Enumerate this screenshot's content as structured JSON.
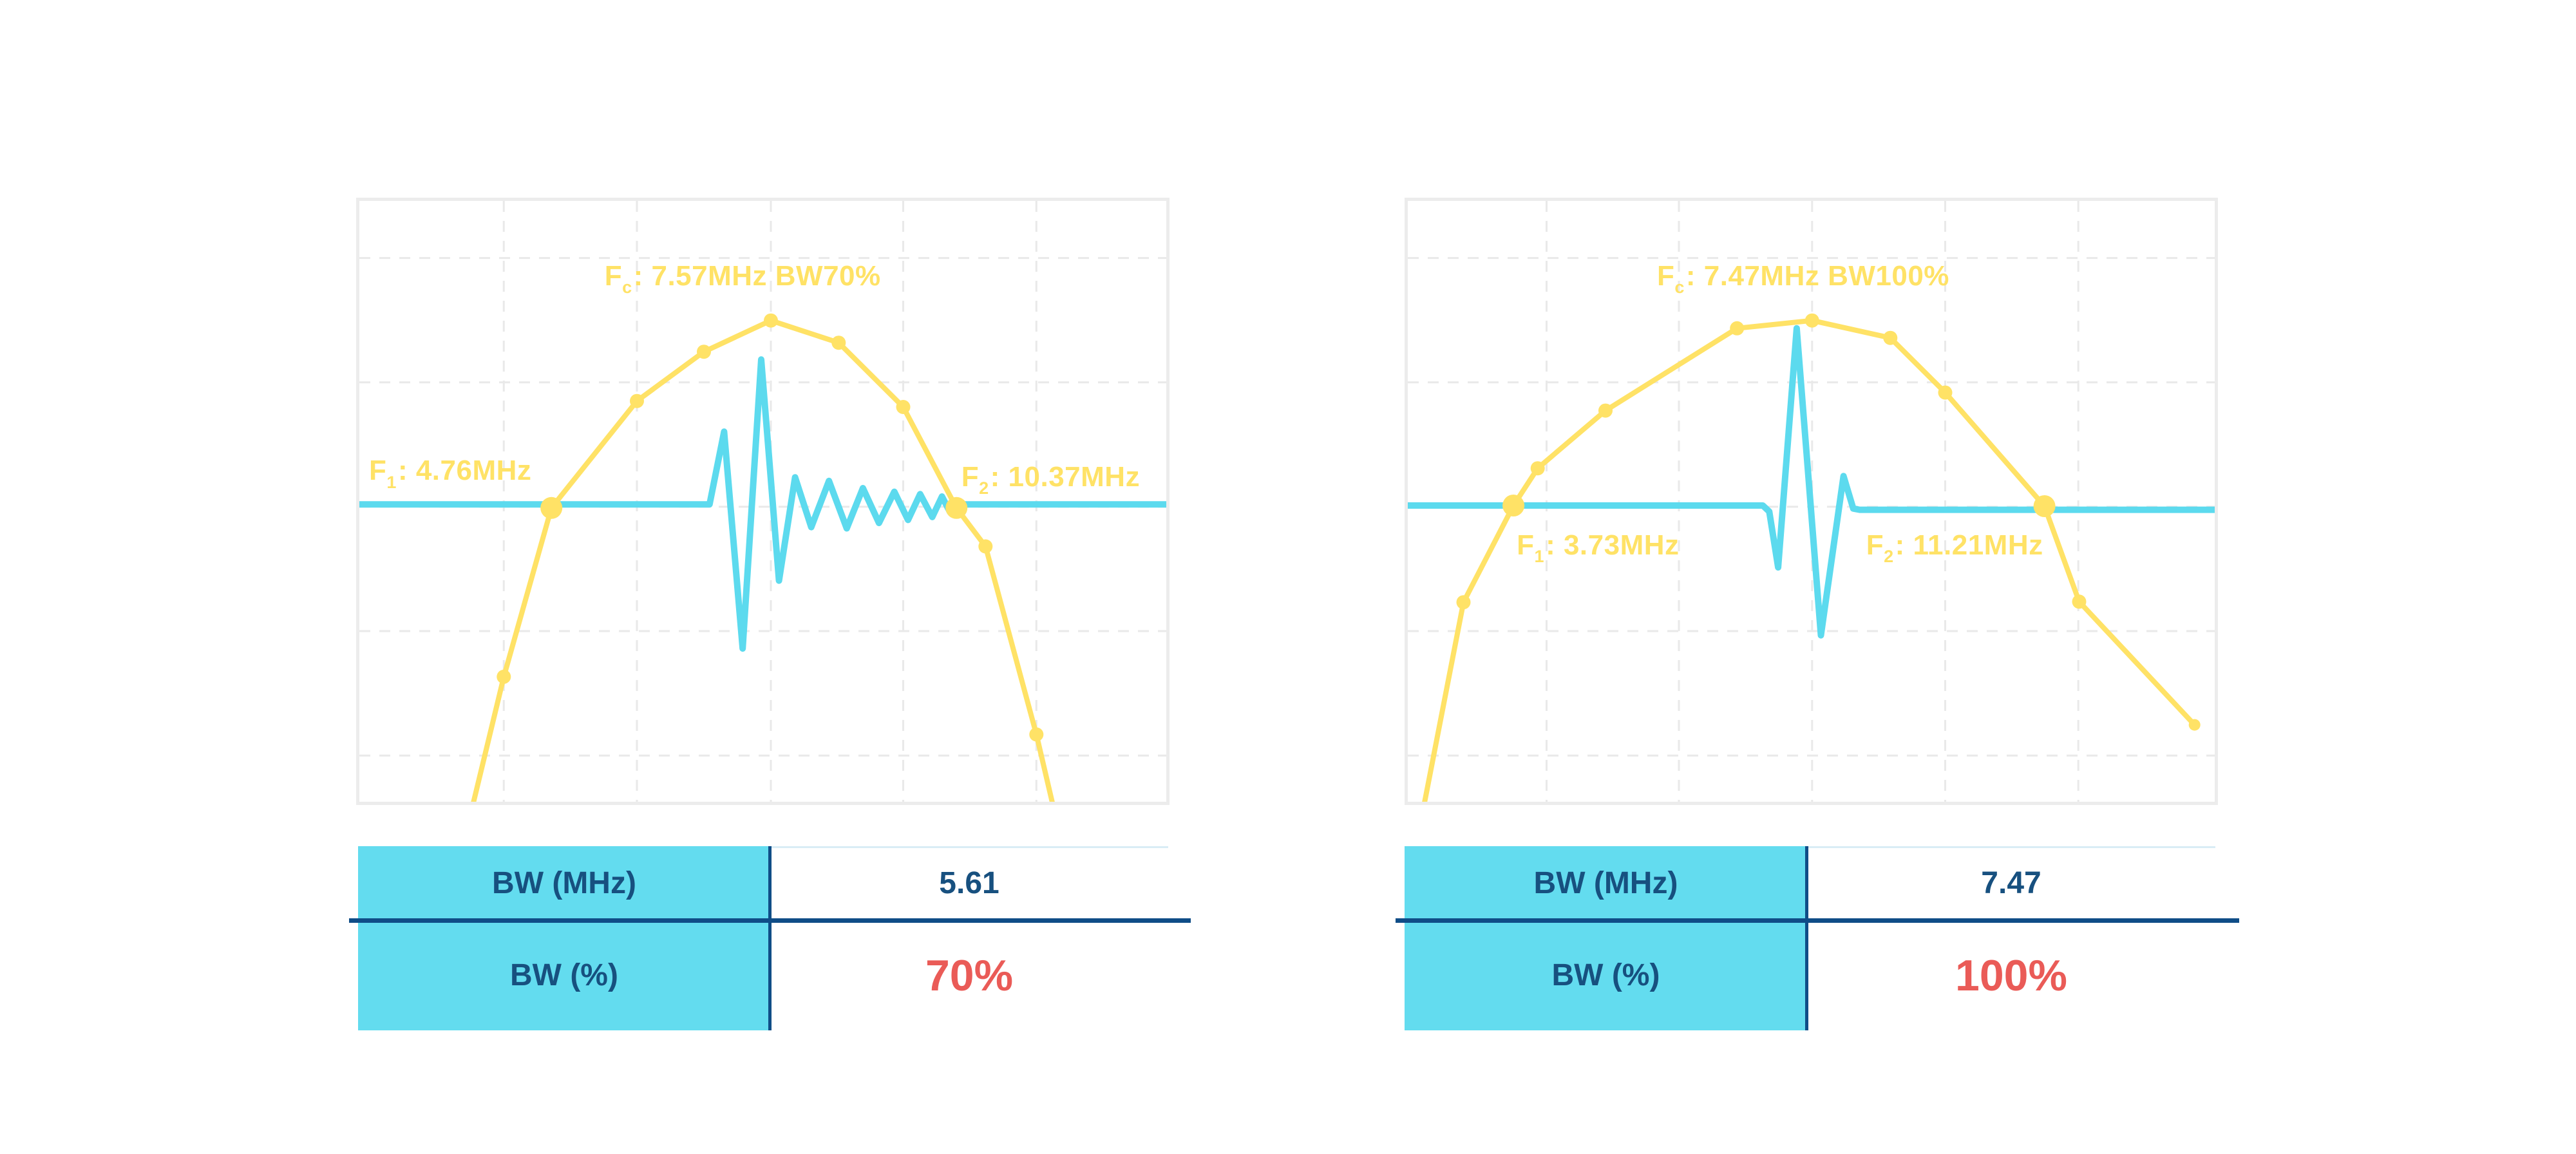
{
  "colors": {
    "yellow": "#FFE266",
    "cyan": "#5CDAEE",
    "navy": "#17507F",
    "red": "#EA5B57",
    "grid": "#E9E9E9",
    "panel_border": "#ECECEC",
    "divider_navy": "#0F4D87",
    "table_cyan": "#63DCEF",
    "value_top_line": "#D9EDF5"
  },
  "chart_data": [
    {
      "type": "line",
      "title": {
        "prefix": "F",
        "sub": "c",
        "rest": ": 7.57MHz BW70%"
      },
      "f1_label": {
        "prefix": "F",
        "sub": "1",
        "rest": ": 4.76MHz"
      },
      "f2_label": {
        "prefix": "F",
        "sub": "2",
        "rest": ": 10.37MHz"
      },
      "fc_mhz": 7.57,
      "bw_percent": 70,
      "f1_mhz": 4.76,
      "f2_mhz": 10.37,
      "bw_mhz": 5.61,
      "coords_note": "fractions of plot area, y increases downward",
      "grid": {
        "x": [
          0.179,
          0.344,
          0.51,
          0.674,
          0.839
        ],
        "y": [
          0.095,
          0.302,
          0.509,
          0.716,
          0.923
        ]
      },
      "series": {
        "envelope": {
          "points": [
            [
              0.138,
              1.02
            ],
            [
              0.179,
              0.792
            ],
            [
              0.238,
              0.511
            ],
            [
              0.344,
              0.333
            ],
            [
              0.427,
              0.251
            ],
            [
              0.51,
              0.199
            ],
            [
              0.594,
              0.236
            ],
            [
              0.674,
              0.343
            ],
            [
              0.74,
              0.511
            ],
            [
              0.776,
              0.575
            ],
            [
              0.839,
              0.888
            ],
            [
              0.862,
              1.02
            ]
          ],
          "dots": [
            [
              0.179,
              0.792
            ],
            [
              0.344,
              0.333
            ],
            [
              0.427,
              0.251
            ],
            [
              0.51,
              0.199
            ],
            [
              0.594,
              0.236
            ],
            [
              0.674,
              0.343
            ],
            [
              0.776,
              0.575
            ],
            [
              0.839,
              0.888
            ]
          ],
          "big_dots": [
            [
              0.238,
              0.511
            ],
            [
              0.74,
              0.511
            ]
          ],
          "end_dot": []
        },
        "pulse": {
          "baseline_y": 0.505,
          "points": [
            [
              0,
              0.505
            ],
            [
              0.434,
              0.505
            ],
            [
              0.452,
              0.384
            ],
            [
              0.475,
              0.745
            ],
            [
              0.498,
              0.264
            ],
            [
              0.52,
              0.632
            ],
            [
              0.54,
              0.46
            ],
            [
              0.56,
              0.543
            ],
            [
              0.582,
              0.466
            ],
            [
              0.604,
              0.545
            ],
            [
              0.624,
              0.478
            ],
            [
              0.644,
              0.536
            ],
            [
              0.663,
              0.484
            ],
            [
              0.68,
              0.531
            ],
            [
              0.695,
              0.488
            ],
            [
              0.71,
              0.526
            ],
            [
              0.722,
              0.492
            ],
            [
              0.732,
              0.518
            ],
            [
              0.741,
              0.505
            ],
            [
              1,
              0.505
            ]
          ]
        }
      }
    },
    {
      "type": "line",
      "title": {
        "prefix": "F",
        "sub": "c",
        "rest": ": 7.47MHz BW100%"
      },
      "f1_label": {
        "prefix": "F",
        "sub": "1",
        "rest": ": 3.73MHz"
      },
      "f2_label": {
        "prefix": "F",
        "sub": "2",
        "rest": ": 11.21MHz"
      },
      "fc_mhz": 7.47,
      "bw_percent": 100,
      "f1_mhz": 3.73,
      "f2_mhz": 11.21,
      "bw_mhz": 7.47,
      "coords_note": "fractions of plot area, y increases downward",
      "grid": {
        "x": [
          0.172,
          0.336,
          0.501,
          0.666,
          0.831
        ],
        "y": [
          0.095,
          0.302,
          0.509,
          0.716,
          0.923
        ]
      },
      "series": {
        "envelope": {
          "points": [
            [
              0.018,
              1.02
            ],
            [
              0.069,
              0.668
            ],
            [
              0.131,
              0.507
            ],
            [
              0.161,
              0.445
            ],
            [
              0.245,
              0.349
            ],
            [
              0.408,
              0.212
            ],
            [
              0.501,
              0.199
            ],
            [
              0.598,
              0.228
            ],
            [
              0.666,
              0.319
            ],
            [
              0.789,
              0.508
            ],
            [
              0.832,
              0.667
            ],
            [
              0.975,
              0.872
            ]
          ],
          "dots": [
            [
              0.069,
              0.668
            ],
            [
              0.161,
              0.445
            ],
            [
              0.245,
              0.349
            ],
            [
              0.408,
              0.212
            ],
            [
              0.501,
              0.199
            ],
            [
              0.598,
              0.228
            ],
            [
              0.666,
              0.319
            ],
            [
              0.832,
              0.667
            ]
          ],
          "big_dots": [
            [
              0.131,
              0.507
            ],
            [
              0.789,
              0.508
            ]
          ],
          "end_dot": [
            [
              0.975,
              0.872
            ]
          ]
        },
        "pulse": {
          "baseline_y": 0.507,
          "points": [
            [
              0,
              0.507
            ],
            [
              0.44,
              0.507
            ],
            [
              0.448,
              0.517
            ],
            [
              0.459,
              0.61
            ],
            [
              0.482,
              0.212
            ],
            [
              0.512,
              0.723
            ],
            [
              0.54,
              0.458
            ],
            [
              0.552,
              0.512
            ],
            [
              0.56,
              0.514
            ],
            [
              1,
              0.514
            ]
          ]
        }
      }
    }
  ],
  "tables": [
    {
      "rows": [
        {
          "label": "BW (MHz)",
          "value": "5.61"
        },
        {
          "label": "BW (%)",
          "value": "70%"
        }
      ]
    },
    {
      "rows": [
        {
          "label": "BW (MHz)",
          "value": "7.47"
        },
        {
          "label": "BW (%)",
          "value": "100%"
        }
      ]
    }
  ]
}
